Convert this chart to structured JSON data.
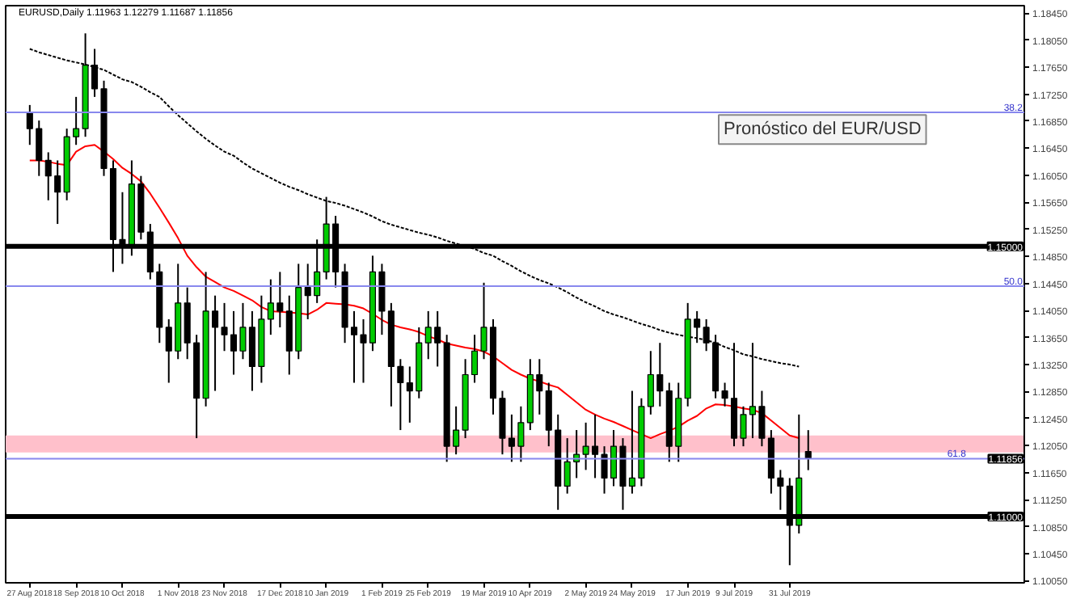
{
  "chart_data": {
    "type": "candlestick",
    "title": "EURUSD,Daily  1.11963 1.12279 1.11687 1.11856",
    "categories": [
      "27 Aug 2018",
      null,
      null,
      null,
      null,
      "18 Sep 2018",
      null,
      null,
      null,
      null,
      "10 Oct 2018",
      null,
      null,
      null,
      null,
      null,
      "1 Nov 2018",
      null,
      null,
      null,
      null,
      "23 Nov 2018",
      null,
      null,
      null,
      null,
      null,
      "17 Dec 2018",
      null,
      null,
      null,
      null,
      "10 Jan 2019",
      null,
      null,
      null,
      null,
      null,
      "1 Feb 2019",
      null,
      null,
      null,
      null,
      "25 Feb 2019",
      null,
      null,
      null,
      null,
      null,
      "19 Mar 2019",
      null,
      null,
      null,
      null,
      "10 Apr 2019",
      null,
      null,
      null,
      null,
      null,
      "2 May 2019",
      null,
      null,
      null,
      null,
      "24 May 2019",
      null,
      null,
      null,
      null,
      null,
      "17 Jun 2019",
      null,
      null,
      null,
      null,
      "9 Jul 2019",
      null,
      null,
      null,
      null,
      null,
      "31 Jul 2019",
      null,
      null
    ],
    "ohlc": [
      [
        1.1698,
        1.1709,
        1.165,
        1.1674
      ],
      [
        1.1674,
        1.1686,
        1.1604,
        1.1627
      ],
      [
        1.1627,
        1.1639,
        1.1568,
        1.1604
      ],
      [
        1.1604,
        1.1627,
        1.1533,
        1.158
      ],
      [
        1.158,
        1.1674,
        1.1568,
        1.1662
      ],
      [
        1.1662,
        1.1721,
        1.165,
        1.1674
      ],
      [
        1.1674,
        1.1815,
        1.1662,
        1.1768
      ],
      [
        1.1768,
        1.1792,
        1.1721,
        1.1733
      ],
      [
        1.1733,
        1.1745,
        1.1604,
        1.1615
      ],
      [
        1.1615,
        1.1627,
        1.1462,
        1.151
      ],
      [
        1.151,
        1.158,
        1.1474,
        1.1498
      ],
      [
        1.1498,
        1.1627,
        1.1486,
        1.1592
      ],
      [
        1.1592,
        1.1604,
        1.151,
        1.1521
      ],
      [
        1.1521,
        1.1533,
        1.1451,
        1.1462
      ],
      [
        1.1462,
        1.1474,
        1.1357,
        1.138
      ],
      [
        1.138,
        1.1392,
        1.1298,
        1.1345
      ],
      [
        1.1345,
        1.1474,
        1.1333,
        1.1416
      ],
      [
        1.1416,
        1.1439,
        1.1333,
        1.1357
      ],
      [
        1.1357,
        1.1369,
        1.1216,
        1.1275
      ],
      [
        1.1275,
        1.1462,
        1.1263,
        1.1404
      ],
      [
        1.1404,
        1.1427,
        1.1286,
        1.138
      ],
      [
        1.138,
        1.1416,
        1.1345,
        1.1369
      ],
      [
        1.1369,
        1.1404,
        1.131,
        1.1345
      ],
      [
        1.1345,
        1.1416,
        1.1333,
        1.138
      ],
      [
        1.138,
        1.1404,
        1.1286,
        1.1322
      ],
      [
        1.1322,
        1.1427,
        1.1298,
        1.1392
      ],
      [
        1.1392,
        1.1451,
        1.1369,
        1.1416
      ],
      [
        1.1416,
        1.1462,
        1.138,
        1.1404
      ],
      [
        1.1404,
        1.1427,
        1.131,
        1.1345
      ],
      [
        1.1345,
        1.1474,
        1.1333,
        1.1439
      ],
      [
        1.1439,
        1.1474,
        1.1392,
        1.1427
      ],
      [
        1.1427,
        1.151,
        1.1416,
        1.1462
      ],
      [
        1.1462,
        1.1573,
        1.1451,
        1.1533
      ],
      [
        1.1533,
        1.1545,
        1.1439,
        1.1462
      ],
      [
        1.1462,
        1.1474,
        1.1357,
        1.138
      ],
      [
        1.138,
        1.1404,
        1.1298,
        1.1369
      ],
      [
        1.1369,
        1.1392,
        1.1298,
        1.1357
      ],
      [
        1.1357,
        1.1486,
        1.1345,
        1.1462
      ],
      [
        1.1462,
        1.1474,
        1.1369,
        1.1404
      ],
      [
        1.1404,
        1.1416,
        1.1263,
        1.1322
      ],
      [
        1.1322,
        1.1333,
        1.1228,
        1.1298
      ],
      [
        1.1298,
        1.1322,
        1.1239,
        1.1286
      ],
      [
        1.1286,
        1.138,
        1.1275,
        1.1357
      ],
      [
        1.1357,
        1.1404,
        1.1333,
        1.138
      ],
      [
        1.138,
        1.1404,
        1.1322,
        1.1357
      ],
      [
        1.1357,
        1.1369,
        1.1181,
        1.1204
      ],
      [
        1.1204,
        1.1263,
        1.1192,
        1.1228
      ],
      [
        1.1228,
        1.1333,
        1.1216,
        1.131
      ],
      [
        1.131,
        1.1369,
        1.1298,
        1.1345
      ],
      [
        1.1345,
        1.1446,
        1.1333,
        1.138
      ],
      [
        1.138,
        1.1392,
        1.1251,
        1.1275
      ],
      [
        1.1275,
        1.1286,
        1.1192,
        1.1216
      ],
      [
        1.1216,
        1.1251,
        1.1181,
        1.1204
      ],
      [
        1.1204,
        1.1263,
        1.1181,
        1.1239
      ],
      [
        1.1239,
        1.1333,
        1.1228,
        1.131
      ],
      [
        1.131,
        1.1333,
        1.1251,
        1.1286
      ],
      [
        1.1286,
        1.1298,
        1.1204,
        1.1228
      ],
      [
        1.1228,
        1.1251,
        1.111,
        1.1145
      ],
      [
        1.1145,
        1.1216,
        1.1134,
        1.1181
      ],
      [
        1.1181,
        1.1228,
        1.1157,
        1.1192
      ],
      [
        1.1192,
        1.1239,
        1.1169,
        1.1204
      ],
      [
        1.1204,
        1.1251,
        1.1157,
        1.1192
      ],
      [
        1.1192,
        1.1204,
        1.1134,
        1.1157
      ],
      [
        1.1157,
        1.1228,
        1.1145,
        1.1204
      ],
      [
        1.1204,
        1.1216,
        1.111,
        1.1145
      ],
      [
        1.1145,
        1.1286,
        1.1134,
        1.1157
      ],
      [
        1.1157,
        1.1275,
        1.1145,
        1.1263
      ],
      [
        1.1263,
        1.1345,
        1.1251,
        1.131
      ],
      [
        1.131,
        1.1357,
        1.1263,
        1.1286
      ],
      [
        1.1286,
        1.1298,
        1.1181,
        1.1204
      ],
      [
        1.1204,
        1.1298,
        1.1181,
        1.1275
      ],
      [
        1.1275,
        1.1416,
        1.1263,
        1.1392
      ],
      [
        1.1392,
        1.1404,
        1.1357,
        1.138
      ],
      [
        1.138,
        1.1392,
        1.1345,
        1.1357
      ],
      [
        1.1357,
        1.1369,
        1.1275,
        1.1286
      ],
      [
        1.1286,
        1.1298,
        1.1263,
        1.1275
      ],
      [
        1.1275,
        1.1357,
        1.1204,
        1.1216
      ],
      [
        1.1216,
        1.1263,
        1.1204,
        1.1251
      ],
      [
        1.1251,
        1.1357,
        1.1216,
        1.1263
      ],
      [
        1.1263,
        1.1286,
        1.1204,
        1.1216
      ],
      [
        1.1216,
        1.1228,
        1.1134,
        1.1157
      ],
      [
        1.1157,
        1.1169,
        1.111,
        1.1145
      ],
      [
        1.1145,
        1.1157,
        1.1028,
        1.1087
      ],
      [
        1.1087,
        1.1251,
        1.1075,
        1.1157
      ],
      [
        1.11963,
        1.12279,
        1.11687,
        1.11856
      ]
    ],
    "colors": [
      "#000000",
      "#000000",
      "#000000",
      "#000000",
      "#00cc00",
      "#00cc00",
      "#00cc00",
      "#000000",
      "#000000",
      "#000000",
      "#000000",
      "#00cc00",
      "#000000",
      "#000000",
      "#000000",
      "#000000",
      "#00cc00",
      "#000000",
      "#000000",
      "#00cc00",
      "#000000",
      "#000000",
      "#000000",
      "#00cc00",
      "#000000",
      "#00cc00",
      "#00cc00",
      "#000000",
      "#000000",
      "#00cc00",
      "#000000",
      "#00cc00",
      "#00cc00",
      "#000000",
      "#000000",
      "#000000",
      "#000000",
      "#00cc00",
      "#000000",
      "#000000",
      "#000000",
      "#000000",
      "#00cc00",
      "#00cc00",
      "#000000",
      "#000000",
      "#00cc00",
      "#00cc00",
      "#00cc00",
      "#00cc00",
      "#000000",
      "#000000",
      "#000000",
      "#00cc00",
      "#00cc00",
      "#000000",
      "#000000",
      "#000000",
      "#00cc00",
      "#00cc00",
      "#00cc00",
      "#000000",
      "#000000",
      "#00cc00",
      "#000000",
      "#00cc00",
      "#00cc00",
      "#00cc00",
      "#000000",
      "#000000",
      "#00cc00",
      "#00cc00",
      "#000000",
      "#000000",
      "#000000",
      "#000000",
      "#000000",
      "#00cc00",
      "#00cc00",
      "#000000",
      "#000000",
      "#000000",
      "#000000",
      "#00cc00",
      "#000000"
    ],
    "series": [
      {
        "type": "line",
        "color": "#000000",
        "line_style": "dotted",
        "values": [
          1.1792,
          1.1787,
          1.1783,
          1.1779,
          1.1775,
          1.1772,
          1.1769,
          1.1765,
          1.1761,
          1.1754,
          1.1747,
          1.1743,
          1.1736,
          1.1728,
          1.1721,
          1.1707,
          1.1694,
          1.1682,
          1.167,
          1.1659,
          1.1649,
          1.164,
          1.1634,
          1.1624,
          1.1615,
          1.1608,
          1.1601,
          1.1594,
          1.1588,
          1.1583,
          1.1577,
          1.1572,
          1.1567,
          1.1564,
          1.156,
          1.1555,
          1.155,
          1.1544,
          1.1537,
          1.1532,
          1.1528,
          1.1524,
          1.152,
          1.1517,
          1.1513,
          1.1508,
          1.1504,
          1.15,
          1.1496,
          1.149,
          1.1486,
          1.1478,
          1.1471,
          1.1463,
          1.1456,
          1.145,
          1.1445,
          1.1439,
          1.1432,
          1.1424,
          1.1417,
          1.1411,
          1.1404,
          1.1399,
          1.1395,
          1.139,
          1.1385,
          1.1381,
          1.1376,
          1.1372,
          1.1369,
          1.1366,
          1.1364,
          1.1361,
          1.1357,
          1.1351,
          1.1346,
          1.134,
          1.1337,
          1.1333,
          1.133,
          1.1327,
          1.1325,
          1.1322,
          null
        ]
      },
      {
        "type": "line",
        "color": "#ff0000",
        "line_style": "solid",
        "values": [
          1.1627,
          1.1627,
          1.1625,
          1.1622,
          1.162,
          1.164,
          1.1648,
          1.165,
          1.164,
          1.1629,
          1.1616,
          1.1607,
          1.1596,
          1.1578,
          1.1557,
          1.1535,
          1.1512,
          1.1486,
          1.1469,
          1.1455,
          1.1447,
          1.1439,
          1.1434,
          1.1427,
          1.142,
          1.141,
          1.1404,
          1.1403,
          1.1402,
          1.1401,
          1.1399,
          1.1406,
          1.1416,
          1.1415,
          1.1414,
          1.1412,
          1.1408,
          1.14,
          1.1391,
          1.1384,
          1.138,
          1.1377,
          1.1373,
          1.1367,
          1.1362,
          1.1356,
          1.1353,
          1.135,
          1.1348,
          1.1344,
          1.1337,
          1.1327,
          1.1317,
          1.131,
          1.1304,
          1.13,
          1.1295,
          1.1291,
          1.128,
          1.1269,
          1.1258,
          1.1251,
          1.1245,
          1.124,
          1.1234,
          1.1228,
          1.1222,
          1.1216,
          1.1222,
          1.1227,
          1.1233,
          1.1242,
          1.1249,
          1.126,
          1.1266,
          1.1265,
          1.1263,
          1.126,
          1.1258,
          1.1253,
          1.1242,
          1.1231,
          1.122,
          1.1216,
          null
        ]
      }
    ],
    "ylim": [
      1.1002,
      1.1856
    ],
    "yticks": [
      {
        "value": 1.1845,
        "label": "1.18450"
      },
      {
        "value": 1.1805,
        "label": "1.18050"
      },
      {
        "value": 1.1765,
        "label": "1.17650"
      },
      {
        "value": 1.1725,
        "label": "1.17250"
      },
      {
        "value": 1.1685,
        "label": "1.16850"
      },
      {
        "value": 1.1645,
        "label": "1.16450"
      },
      {
        "value": 1.1605,
        "label": "1.16050"
      },
      {
        "value": 1.1565,
        "label": "1.15650"
      },
      {
        "value": 1.1525,
        "label": "1.15250"
      },
      {
        "value": 1.1485,
        "label": "1.14850"
      },
      {
        "value": 1.1445,
        "label": "1.14450"
      },
      {
        "value": 1.1405,
        "label": "1.14050"
      },
      {
        "value": 1.1365,
        "label": "1.13650"
      },
      {
        "value": 1.1325,
        "label": "1.13250"
      },
      {
        "value": 1.1285,
        "label": "1.12850"
      },
      {
        "value": 1.1245,
        "label": "1.12450"
      },
      {
        "value": 1.1205,
        "label": "1.12050"
      },
      {
        "value": 1.1165,
        "label": "1.11650"
      },
      {
        "value": 1.1125,
        "label": "1.11250"
      },
      {
        "value": 1.1085,
        "label": "1.10850"
      },
      {
        "value": 1.1045,
        "label": "1.10450"
      },
      {
        "value": 1.1005,
        "label": "1.10050"
      }
    ],
    "ref_lines": [
      {
        "axis": "y",
        "value": 1.15,
        "label": "1.15000",
        "color": "#000000",
        "line_style": "solid"
      },
      {
        "axis": "y",
        "value": 1.11,
        "label": "1.11000",
        "color": "#000000",
        "line_style": "solid"
      },
      {
        "axis": "y",
        "value": 1.1698,
        "color": "#8888ee",
        "line_style": "solid"
      },
      {
        "axis": "y",
        "value": 1.1441,
        "color": "#8888ee",
        "line_style": "solid"
      },
      {
        "axis": "y",
        "value": 1.11856,
        "label": "1.11856",
        "color": "#8888ee",
        "line_style": "solid"
      }
    ],
    "bands": [
      {
        "axis": "y",
        "from": 1.1195,
        "to": 1.122,
        "color": "#ffc0cb"
      }
    ],
    "annotations": [
      "Pronóstico del EUR/USD",
      "38.2",
      "50.0",
      "61.8"
    ],
    "grid": false
  }
}
